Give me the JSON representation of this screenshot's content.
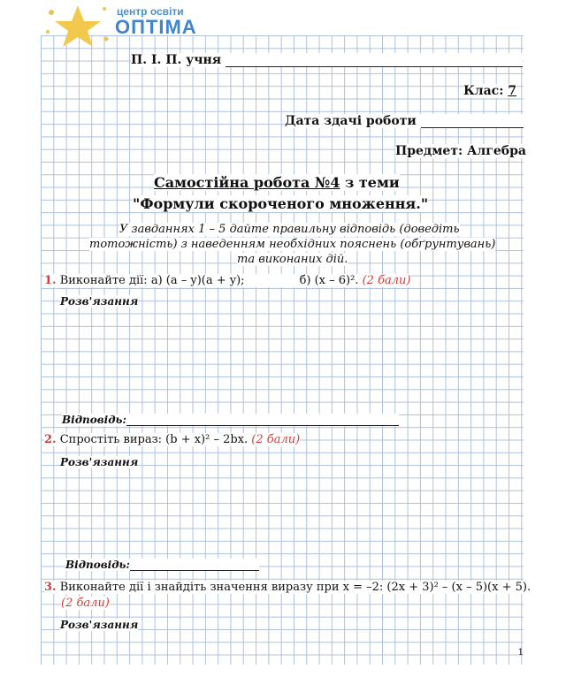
{
  "logo": {
    "small": "центр освіти",
    "big": "ОПТІМА"
  },
  "header": {
    "student_label": "П. І. П. учня",
    "class_label": "Клас:",
    "class_value": "7",
    "date_label": "Дата здачі роботи",
    "subject": "Предмет: Алгебра"
  },
  "title": {
    "line1": "Самостійна робота №4",
    "line1_suffix": "з теми",
    "line2": "\"Формули скороченого множення.\""
  },
  "instructions": [
    "У завданнях 1 – 5 дайте правильну відповідь (доведіть",
    "тотожність) з наведенням необхідних пояснень (обґрунтувань)",
    "та виконаних дій."
  ],
  "tasks": [
    {
      "num": "1.",
      "text": "Виконайте дії: а) (a – y)(a + y);",
      "text_b": "б) (x – 6)².",
      "points": "(2 бали)",
      "solution": "Розв'язання",
      "answer": "Відповідь:"
    },
    {
      "num": "2.",
      "text": "Спростіть вираз:  (b + x)² – 2bx.",
      "points": "(2 бали)",
      "solution": "Розв'язання",
      "answer": "Відповідь:"
    },
    {
      "num": "3.",
      "text": "Виконайте дії і знайдіть значення виразу при x = –2: (2x + 3)² – (x – 5)(x + 5).",
      "points": "(2 бали)",
      "solution": "Розв'язання"
    }
  ],
  "page_number": "1",
  "colors": {
    "grid": "#9fb6d6",
    "accent_red": "#d23b3b",
    "logo_blue": "#3d86cf",
    "star": "#f2c94c"
  }
}
